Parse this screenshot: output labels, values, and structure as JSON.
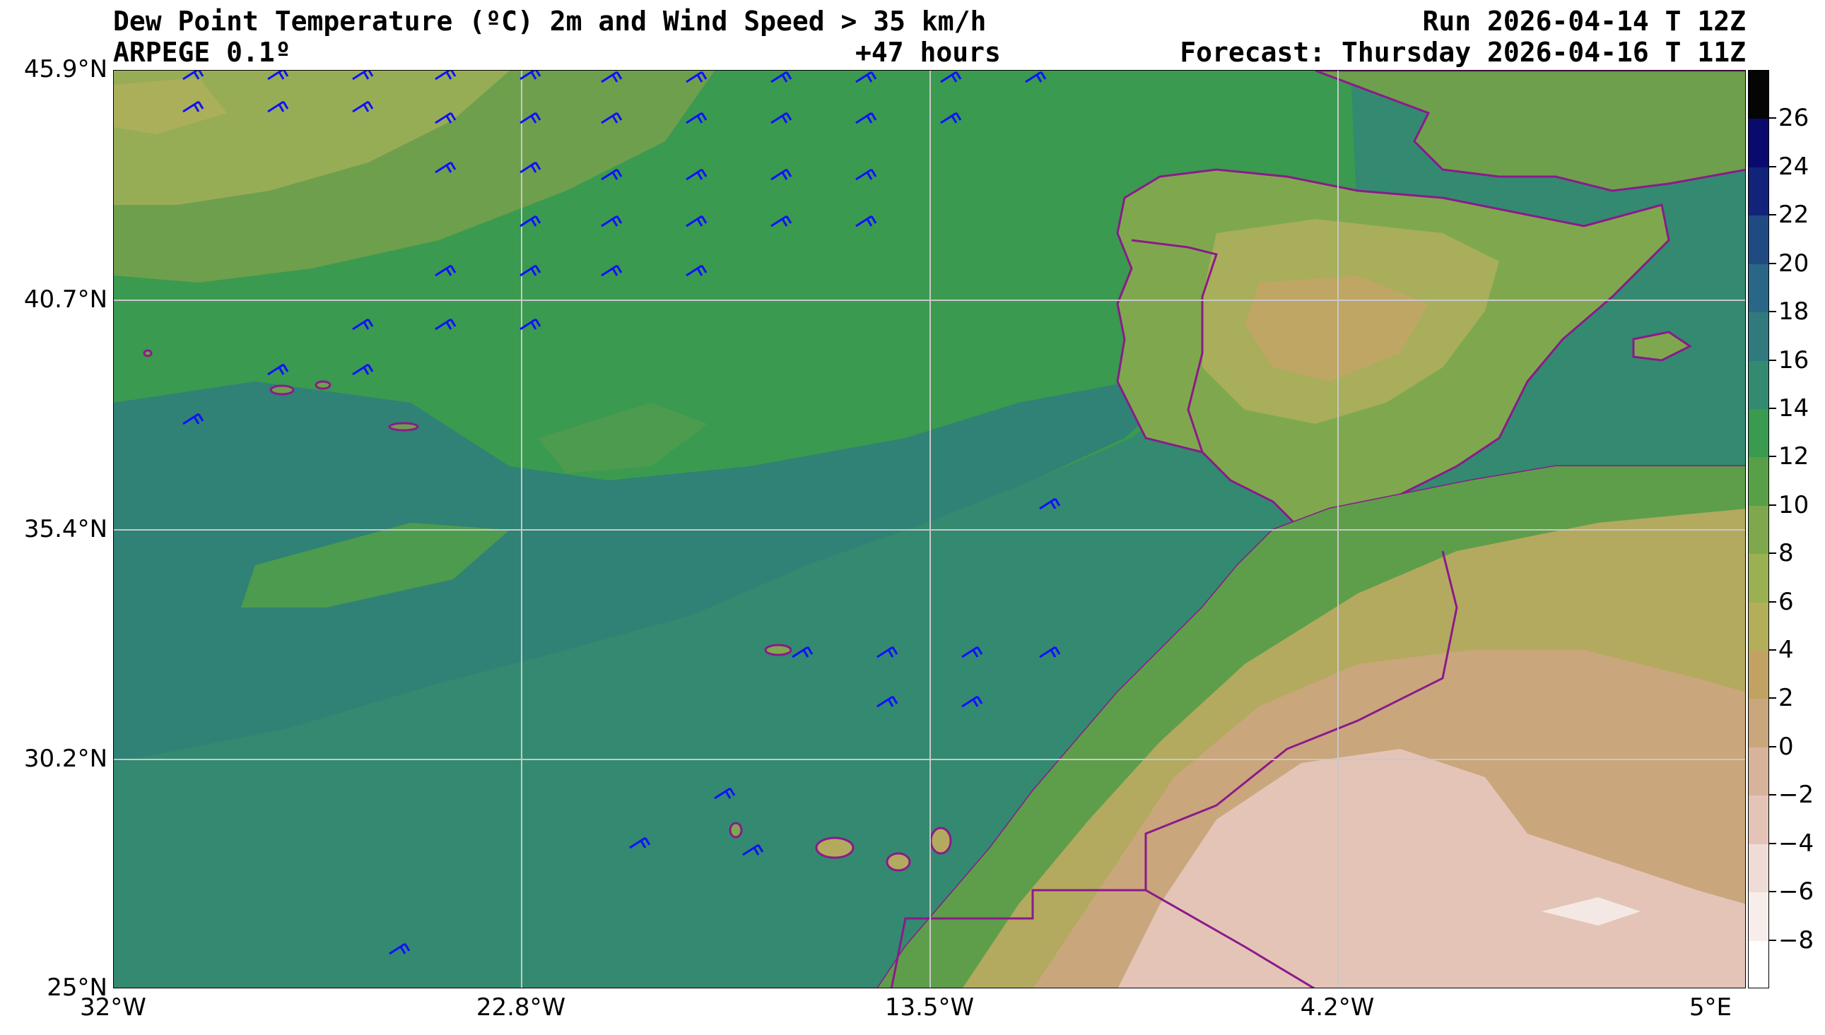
{
  "header": {
    "title_line1": "Dew Point Temperature (ºC) 2m and Wind Speed > 35 km/h",
    "title_line2": "ARPEGE 0.1º",
    "lead_time": "+47 hours",
    "run": "Run 2026-04-14 T 12Z",
    "forecast": "Forecast: Thursday 2026-04-16 T 11Z"
  },
  "map": {
    "region": "Eastern North Atlantic, Iberian Peninsula and north-west Africa",
    "lat_labels": [
      "45.9°N",
      "40.7°N",
      "35.4°N",
      "30.2°N",
      "25°N"
    ],
    "lon_labels": [
      "32°W",
      "22.8°W",
      "13.5°W",
      "4.2°W",
      "5°E"
    ],
    "lat_range": [
      25,
      45.9
    ],
    "lon_range": [
      -32,
      5
    ],
    "gridlines": true,
    "border_color": "#8b1a8b",
    "wind_barb_color": "#1010ff"
  },
  "colorbar": {
    "ticks": [
      "26",
      "24",
      "22",
      "20",
      "18",
      "16",
      "14",
      "12",
      "10",
      "8",
      "6",
      "4",
      "2",
      "0",
      "−2",
      "−4",
      "−6",
      "−8"
    ],
    "levels": [
      28,
      26,
      24,
      22,
      20,
      18,
      16,
      14,
      12,
      10,
      8,
      6,
      4,
      2,
      0,
      -2,
      -4,
      -6,
      -8,
      -10
    ],
    "colors": [
      "#050505",
      "#0a0a6e",
      "#13237a",
      "#1f4b82",
      "#2a6686",
      "#307a7e",
      "#338a70",
      "#3a9a50",
      "#58a048",
      "#7fa84e",
      "#9ab052",
      "#b2ae5a",
      "#c2a263",
      "#caa67c",
      "#d6b39a",
      "#e4c4b7",
      "#efdcd6",
      "#f7eeeb",
      "#ffffff"
    ]
  }
}
